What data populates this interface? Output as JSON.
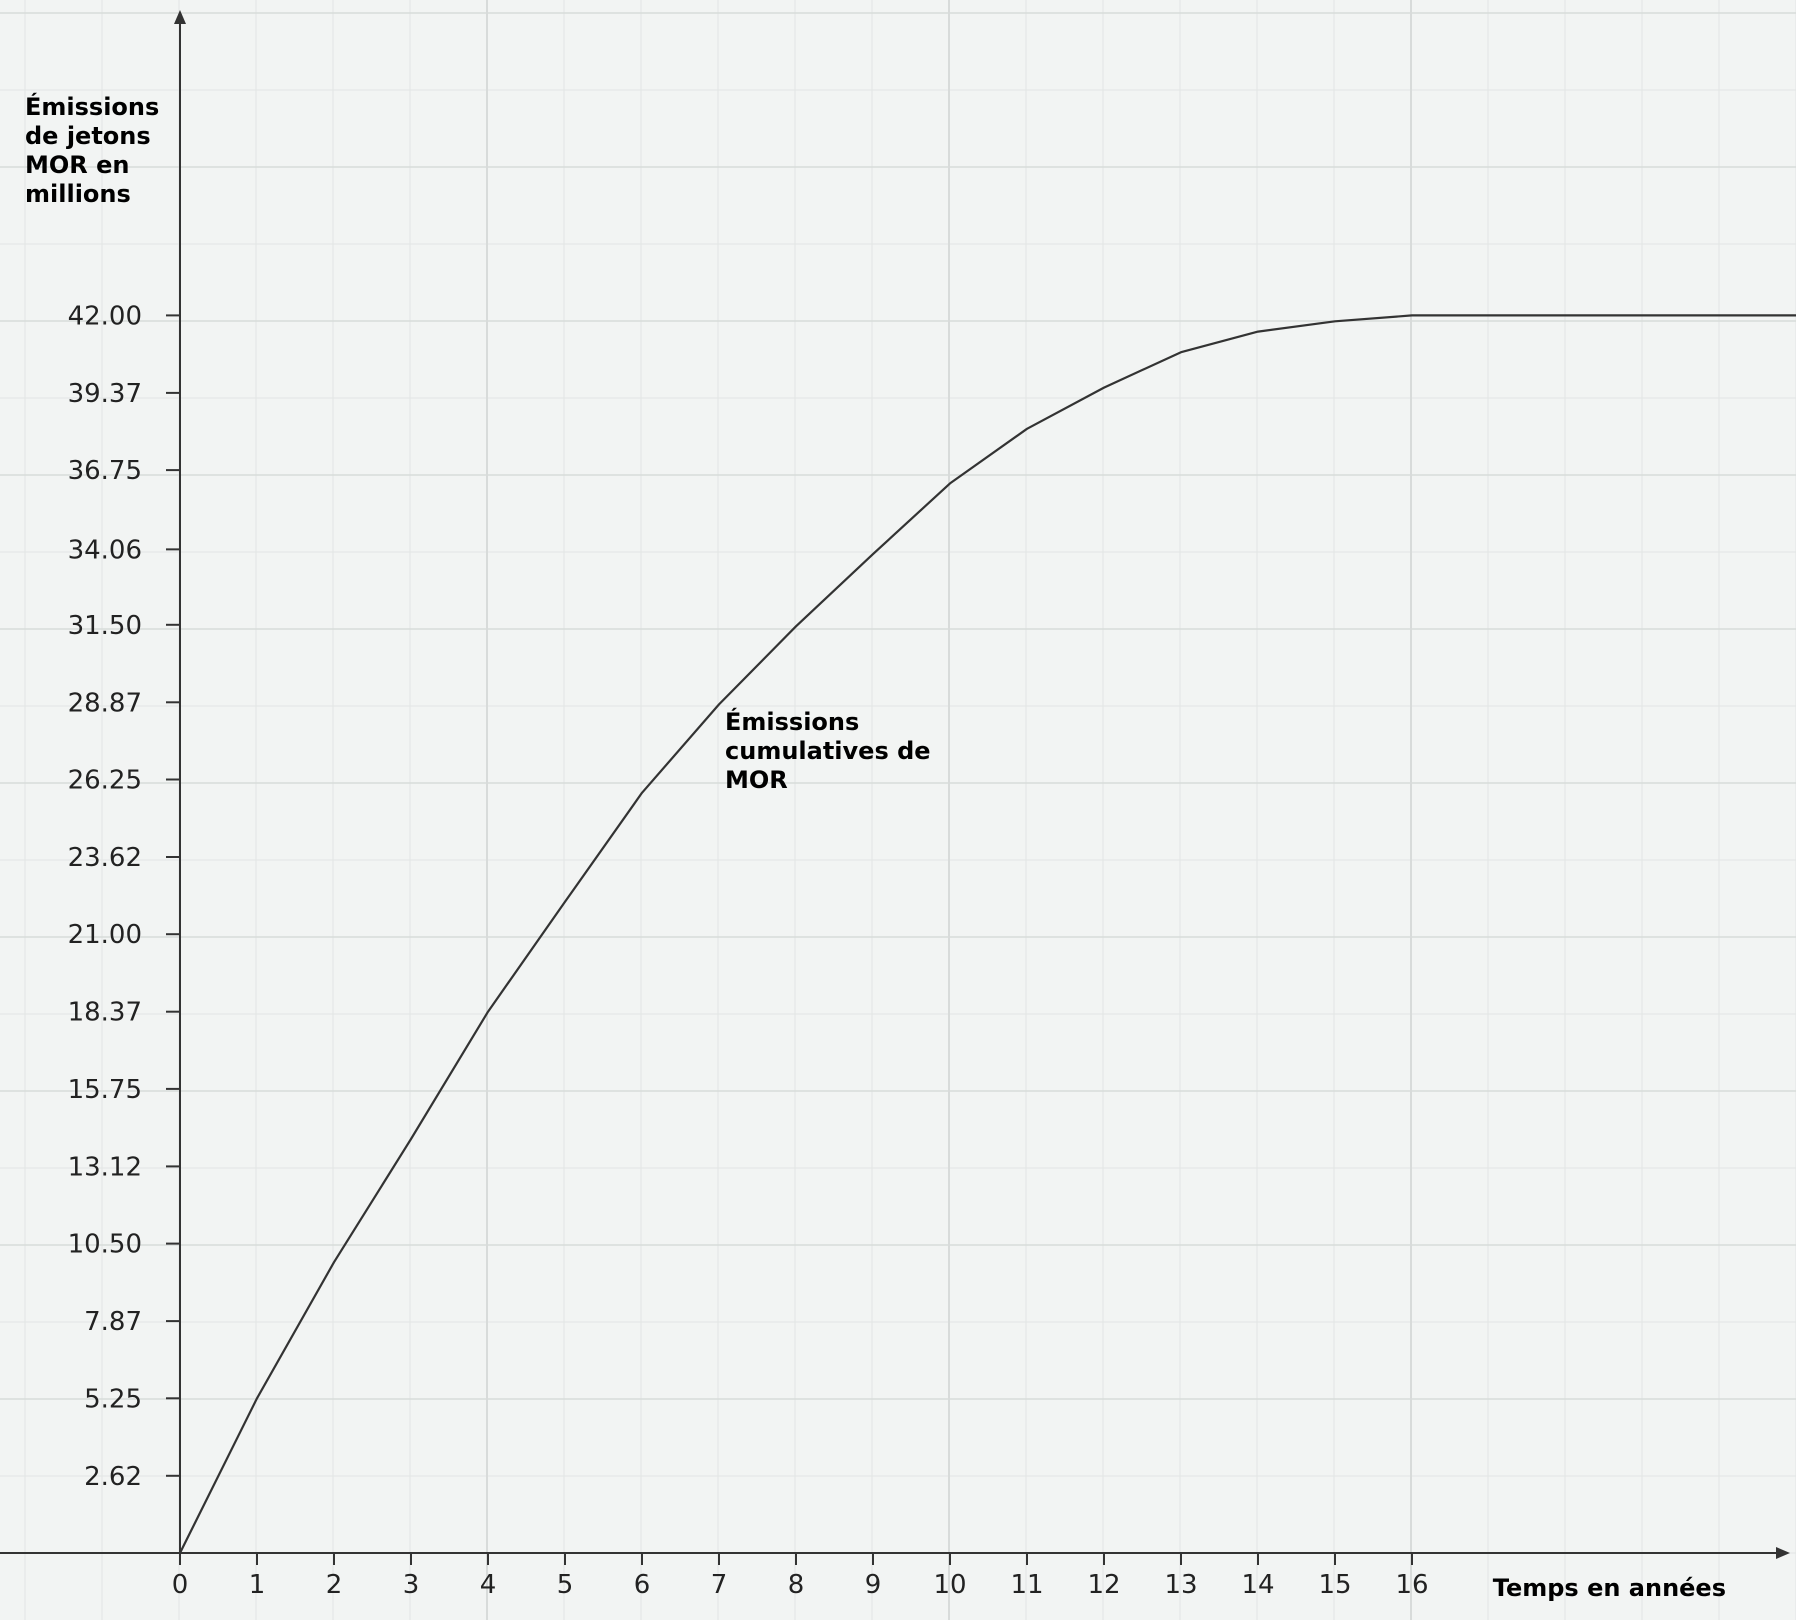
{
  "chart_data": {
    "type": "line",
    "xlabel": "Temps en années",
    "ylabel": [
      "Émissions",
      "de jetons",
      "MOR en",
      "millions"
    ],
    "annotation": [
      "Émissions",
      "cumulatives de",
      "MOR"
    ],
    "x_ticks": [
      "0",
      "1",
      "2",
      "3",
      "4",
      "5",
      "6",
      "7",
      "8",
      "9",
      "10",
      "11",
      "12",
      "13",
      "14",
      "15",
      "16"
    ],
    "y_ticks": [
      "2.62",
      "5.25",
      "7.87",
      "10.50",
      "13.12",
      "15.75",
      "18.37",
      "21.00",
      "23.62",
      "26.25",
      "28.87",
      "31.50",
      "34.06",
      "36.75",
      "39.37",
      "42.00"
    ],
    "xlim": [
      0,
      21.6
    ],
    "ylim": [
      0,
      53.6
    ],
    "grid": true,
    "series": [
      {
        "x": [
          0,
          1,
          2,
          3,
          4,
          5,
          6,
          7,
          8,
          9,
          10,
          11,
          12,
          13,
          14,
          15,
          16,
          21.6
        ],
        "y": [
          0,
          5.25,
          9.87,
          14.05,
          18.37,
          22.1,
          25.8,
          28.8,
          31.45,
          33.9,
          36.3,
          38.15,
          39.55,
          40.75,
          41.45,
          41.8,
          42.0,
          42.0
        ]
      }
    ],
    "colors": {
      "line": "#333333",
      "axis": "#333333",
      "grid": "#e2e5e4",
      "grid_major": "#d8dbda",
      "background": "#f2f4f3"
    }
  }
}
